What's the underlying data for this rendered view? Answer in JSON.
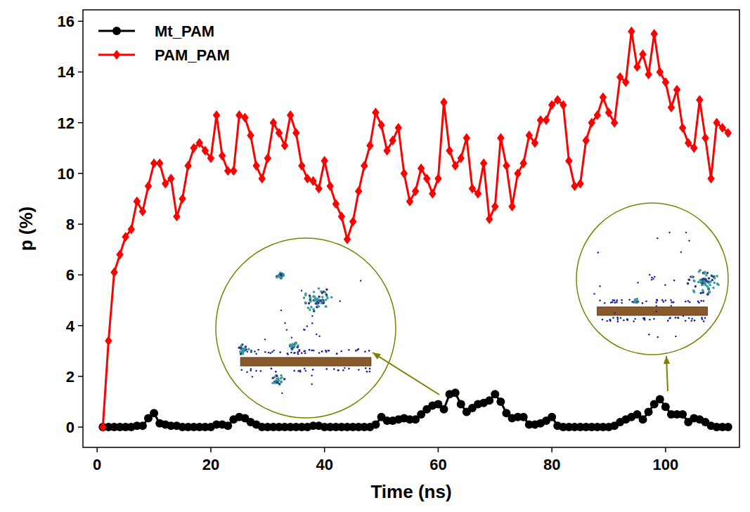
{
  "chart_data": {
    "type": "line",
    "x_label": "Time (ns)",
    "y_label": "p (%)",
    "x": [
      1,
      2,
      3,
      4,
      5,
      6,
      7,
      8,
      9,
      10,
      11,
      12,
      13,
      14,
      15,
      16,
      17,
      18,
      19,
      20,
      21,
      22,
      23,
      24,
      25,
      26,
      27,
      28,
      29,
      30,
      31,
      32,
      33,
      34,
      35,
      36,
      37,
      38,
      39,
      40,
      41,
      42,
      43,
      44,
      45,
      46,
      47,
      48,
      49,
      50,
      51,
      52,
      53,
      54,
      55,
      56,
      57,
      58,
      59,
      60,
      61,
      62,
      63,
      64,
      65,
      66,
      67,
      68,
      69,
      70,
      71,
      72,
      73,
      74,
      75,
      76,
      77,
      78,
      79,
      80,
      81,
      82,
      83,
      84,
      85,
      86,
      87,
      88,
      89,
      90,
      91,
      92,
      93,
      94,
      95,
      96,
      97,
      98,
      99,
      100,
      101,
      102,
      103,
      104,
      105,
      106,
      107,
      108,
      109,
      110,
      111
    ],
    "series": [
      {
        "name": "Mt_PAM",
        "color": "#000000",
        "marker": "circle",
        "line_style": "solid",
        "values": [
          0,
          0,
          0,
          0,
          0,
          0,
          0.05,
          0.05,
          0.35,
          0.55,
          0.15,
          0.1,
          0.05,
          0.05,
          0,
          0,
          0,
          0,
          0,
          0,
          0.1,
          0.1,
          0.05,
          0.3,
          0.4,
          0.35,
          0.2,
          0.1,
          0,
          0,
          0,
          0,
          0,
          0,
          0,
          0,
          0,
          0.05,
          0.05,
          0,
          0,
          0,
          0,
          0,
          0,
          0,
          0,
          0,
          0.1,
          0.4,
          0.25,
          0.25,
          0.3,
          0.35,
          0.3,
          0.3,
          0.5,
          0.7,
          0.85,
          0.9,
          0.7,
          1.3,
          1.35,
          0.9,
          0.6,
          0.75,
          0.9,
          0.95,
          1.05,
          1.3,
          1.0,
          0.55,
          0.35,
          0.4,
          0.4,
          0.1,
          0.1,
          0.15,
          0.25,
          0.4,
          0.05,
          0,
          0,
          0,
          0,
          0,
          0,
          0,
          0,
          0,
          0.05,
          0.2,
          0.3,
          0.4,
          0.5,
          0.3,
          0.6,
          0.9,
          1.1,
          0.8,
          0.5,
          0.5,
          0.5,
          0.2,
          0.35,
          0.3,
          0.2,
          0.05,
          0,
          0,
          0
        ]
      },
      {
        "name": "PAM_PAM",
        "color": "#ff0000",
        "marker": "diamond",
        "line_style": "solid",
        "values": [
          0,
          3.4,
          6.1,
          6.8,
          7.5,
          7.8,
          8.9,
          8.5,
          9.5,
          10.4,
          10.4,
          9.6,
          9.8,
          8.3,
          9.0,
          10.3,
          11.0,
          11.2,
          10.9,
          10.6,
          12.3,
          10.7,
          10.1,
          10.1,
          12.3,
          12.2,
          11.5,
          10.3,
          9.8,
          10.6,
          12.0,
          11.6,
          11.1,
          12.3,
          11.6,
          10.3,
          9.8,
          9.7,
          9.4,
          10.5,
          9.5,
          8.8,
          8.3,
          7.4,
          8.1,
          9.3,
          10.3,
          11.1,
          12.4,
          11.9,
          10.9,
          11.3,
          11.8,
          10.0,
          8.9,
          9.3,
          10.2,
          9.8,
          9.2,
          9.8,
          12.8,
          10.9,
          10.3,
          10.6,
          11.4,
          9.4,
          9.2,
          10.4,
          8.2,
          8.7,
          11.4,
          10.3,
          8.7,
          10.0,
          10.4,
          11.5,
          11.2,
          12.1,
          12.1,
          12.7,
          12.9,
          12.7,
          10.5,
          9.5,
          9.6,
          11.3,
          12.0,
          12.3,
          13.0,
          12.4,
          12.0,
          13.8,
          13.6,
          15.6,
          14.2,
          14.7,
          13.9,
          15.5,
          14.0,
          13.6,
          12.6,
          13.3,
          11.8,
          11.2,
          11.0,
          12.9,
          11.4,
          9.8,
          12.0,
          11.8,
          11.6
        ]
      }
    ],
    "xlim": [
      -2.5,
      113
    ],
    "ylim": [
      -0.8,
      16.45
    ],
    "xticks": [
      0,
      20,
      40,
      60,
      80,
      100
    ],
    "yticks": [
      0,
      2,
      4,
      6,
      8,
      10,
      12,
      14,
      16
    ],
    "grid": false,
    "legend": "upper left"
  }
}
